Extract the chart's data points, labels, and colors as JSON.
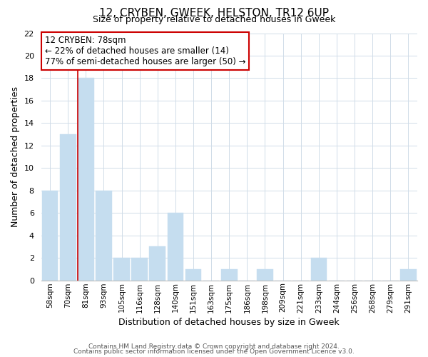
{
  "title": "12, CRYBEN, GWEEK, HELSTON, TR12 6UP",
  "subtitle": "Size of property relative to detached houses in Gweek",
  "xlabel": "Distribution of detached houses by size in Gweek",
  "ylabel": "Number of detached properties",
  "bar_labels": [
    "58sqm",
    "70sqm",
    "81sqm",
    "93sqm",
    "105sqm",
    "116sqm",
    "128sqm",
    "140sqm",
    "151sqm",
    "163sqm",
    "175sqm",
    "186sqm",
    "198sqm",
    "209sqm",
    "221sqm",
    "233sqm",
    "244sqm",
    "256sqm",
    "268sqm",
    "279sqm",
    "291sqm"
  ],
  "bar_values": [
    8,
    13,
    18,
    8,
    2,
    2,
    3,
    6,
    1,
    0,
    1,
    0,
    1,
    0,
    0,
    2,
    0,
    0,
    0,
    0,
    1
  ],
  "bar_color": "#c5ddef",
  "bar_edge_color": "#c5ddef",
  "vline_color": "#cc0000",
  "vline_index": 2,
  "annotation_title": "12 CRYBEN: 78sqm",
  "annotation_line1": "← 22% of detached houses are smaller (14)",
  "annotation_line2": "77% of semi-detached houses are larger (50) →",
  "annotation_box_color": "#ffffff",
  "annotation_box_edge": "#cc0000",
  "ylim": [
    0,
    22
  ],
  "yticks": [
    0,
    2,
    4,
    6,
    8,
    10,
    12,
    14,
    16,
    18,
    20,
    22
  ],
  "grid_color": "#d0dce8",
  "footer_line1": "Contains HM Land Registry data © Crown copyright and database right 2024.",
  "footer_line2": "Contains public sector information licensed under the Open Government Licence v3.0.",
  "title_fontsize": 11,
  "subtitle_fontsize": 9,
  "ylabel_fontsize": 9,
  "xlabel_fontsize": 9,
  "tick_fontsize": 7.5,
  "annotation_fontsize": 8.5,
  "footer_fontsize": 6.5
}
